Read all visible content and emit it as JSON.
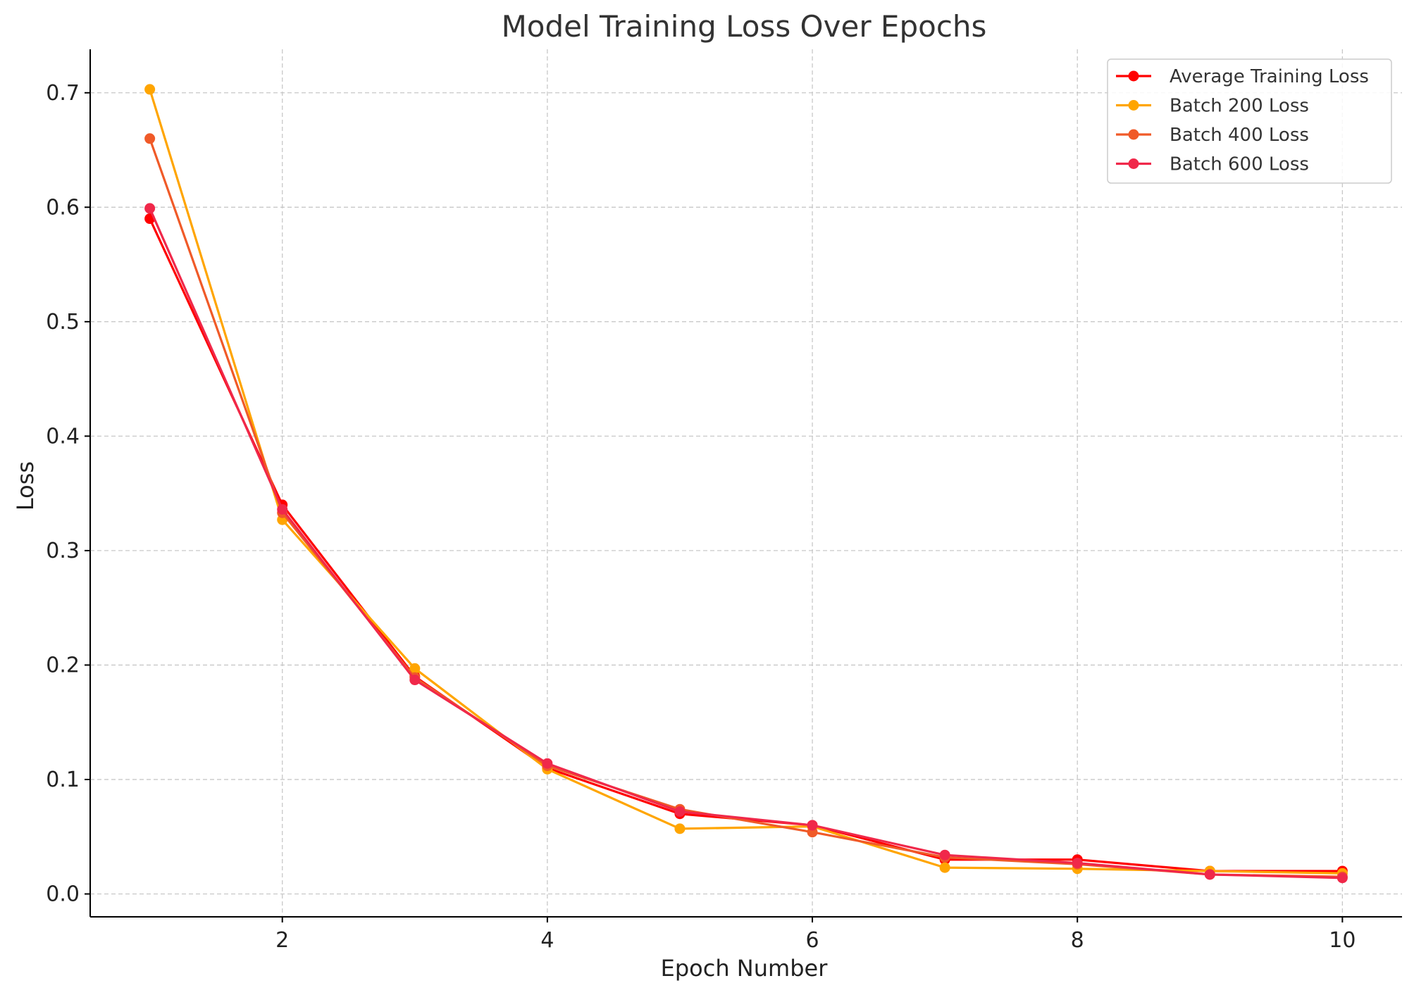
{
  "chart_data": {
    "type": "line",
    "title": "Model Training Loss Over Epochs",
    "xlabel": "Epoch Number",
    "ylabel": "Loss",
    "xlim": [
      0.55,
      10.45
    ],
    "ylim": [
      -0.02,
      0.738
    ],
    "xticks": [
      2,
      4,
      6,
      8,
      10
    ],
    "xtick_labels": [
      "2",
      "4",
      "6",
      "8",
      "10"
    ],
    "yticks": [
      0.0,
      0.1,
      0.2,
      0.3,
      0.4,
      0.5,
      0.6,
      0.7
    ],
    "ytick_labels": [
      "0.0",
      "0.1",
      "0.2",
      "0.3",
      "0.4",
      "0.5",
      "0.6",
      "0.7"
    ],
    "grid": true,
    "legend_position": "top-right",
    "x": [
      1,
      2,
      3,
      4,
      5,
      6,
      7,
      8,
      9,
      10
    ],
    "series": [
      {
        "name": "Average Training Loss",
        "color": "#ff0000",
        "values": [
          0.59,
          0.34,
          0.19,
          0.11,
          0.07,
          0.06,
          0.03,
          0.03,
          0.02,
          0.02
        ]
      },
      {
        "name": "Batch 200 Loss",
        "color": "#ffa500",
        "values": [
          0.703,
          0.327,
          0.197,
          0.109,
          0.057,
          0.059,
          0.023,
          0.022,
          0.02,
          0.018
        ]
      },
      {
        "name": "Batch 400 Loss",
        "color": "#f05a28",
        "values": [
          0.66,
          0.333,
          0.189,
          0.112,
          0.074,
          0.054,
          0.032,
          0.026,
          0.017,
          0.015
        ]
      },
      {
        "name": "Batch 600 Loss",
        "color": "#f0284a",
        "values": [
          0.599,
          0.336,
          0.187,
          0.114,
          0.072,
          0.06,
          0.034,
          0.027,
          0.017,
          0.014
        ]
      }
    ]
  }
}
